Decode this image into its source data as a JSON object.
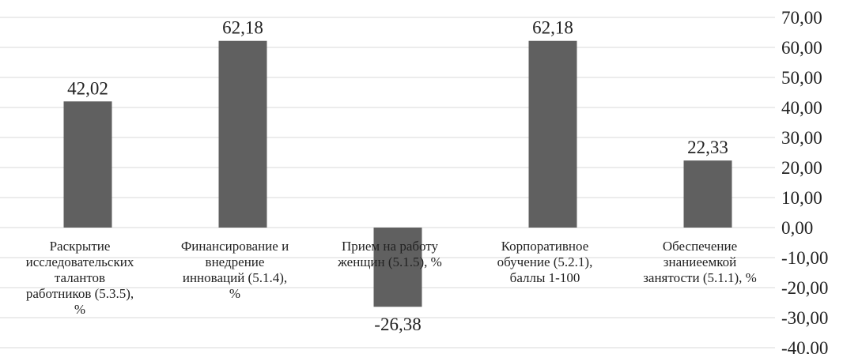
{
  "chart_data": {
    "type": "bar",
    "categories": [
      "Раскрытие\nисследовательских\nталантов\nработников (5.3.5),\n%",
      "Финансирование и\nвнедрение\nинноваций (5.1.4),\n%",
      "Прием на работу\nженщин (5.1.5), %",
      "Корпоративное\nобучение (5.2.1),\nбаллы 1-100",
      "Обеспечение\nзнаниеемкой\nзанятости (5.1.1), %"
    ],
    "values": [
      42.02,
      62.18,
      -26.38,
      62.18,
      22.33
    ],
    "data_labels": [
      "42,02",
      "62,18",
      "-26,38",
      "62,18",
      "22,33"
    ],
    "ylim": [
      -40,
      70
    ],
    "y_ticks": [
      70,
      60,
      50,
      40,
      30,
      20,
      10,
      0,
      -10,
      -20,
      -30,
      -40
    ],
    "y_tick_labels": [
      "70,00",
      "60,00",
      "50,00",
      "40,00",
      "30,00",
      "20,00",
      "10,00",
      "0,00",
      "-10,00",
      "-20,00",
      "-30,00",
      "-40,00"
    ],
    "y_axis_position": "right",
    "grid": true,
    "title": "",
    "xlabel": "",
    "ylabel": "",
    "colors": {
      "bar": "#606060",
      "grid": "#d9d9d9",
      "text": "#222222"
    }
  }
}
